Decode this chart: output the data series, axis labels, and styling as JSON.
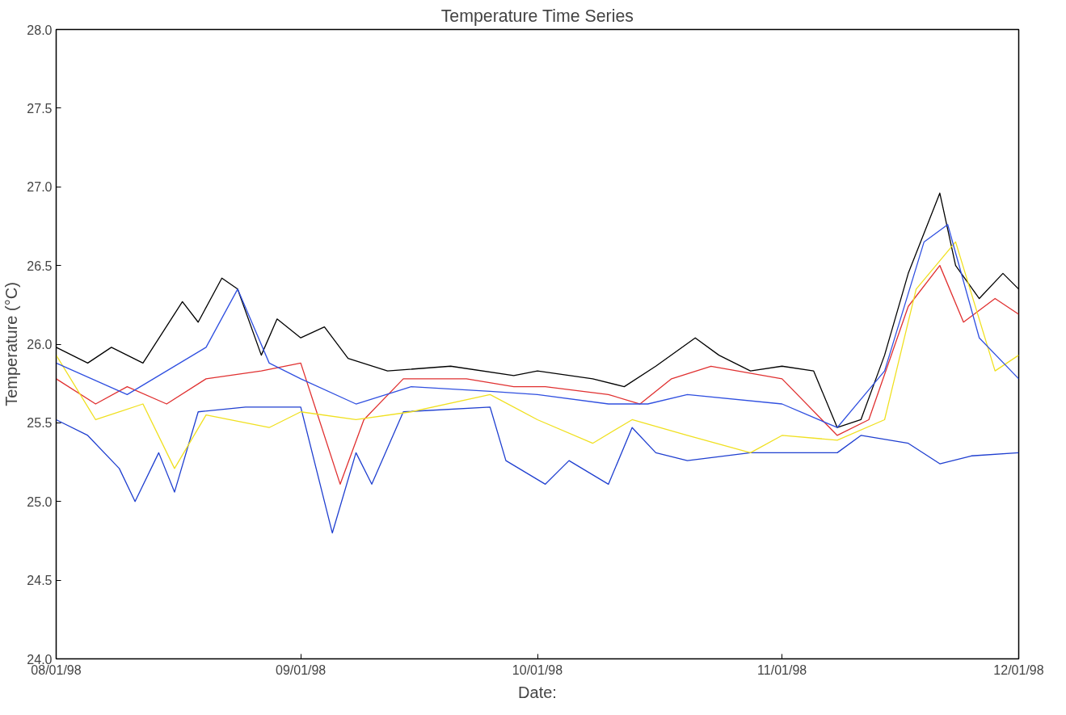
{
  "chart_data": {
    "type": "line",
    "title": "Temperature Time Series",
    "xlabel": "Date:",
    "ylabel": "Temperature (°C)",
    "xlim": [
      "1998-08-01",
      "1998-12-01"
    ],
    "xticks": [
      {
        "value": "1998-08-01",
        "label": "08/01/98"
      },
      {
        "value": "1998-09-01",
        "label": "09/01/98"
      },
      {
        "value": "1998-10-01",
        "label": "10/01/98"
      },
      {
        "value": "1998-11-01",
        "label": "11/01/98"
      },
      {
        "value": "1998-12-01",
        "label": "12/01/98"
      }
    ],
    "ylim": [
      24,
      28
    ],
    "yticks": [
      {
        "value": 24,
        "label": "24.0"
      },
      24.5,
      {
        "value": 25,
        "label": "25.0"
      },
      25.5,
      {
        "value": 26,
        "label": "26.0"
      },
      26.5,
      {
        "value": 27,
        "label": "27.0"
      },
      27.5,
      {
        "value": 28,
        "label": "28.0"
      }
    ],
    "grid": false,
    "line_style": "solid",
    "marker": "none",
    "series": [
      {
        "color": "#000000",
        "x": [
          "1998-08-01",
          "1998-08-05",
          "1998-08-08",
          "1998-08-12",
          "1998-08-17",
          "1998-08-19",
          "1998-08-22",
          "1998-08-24",
          "1998-08-27",
          "1998-08-29",
          "1998-09-01",
          "1998-09-04",
          "1998-09-07",
          "1998-09-12",
          "1998-09-20",
          "1998-09-28",
          "1998-10-01",
          "1998-10-08",
          "1998-10-12",
          "1998-10-16",
          "1998-10-21",
          "1998-10-24",
          "1998-10-28",
          "1998-11-01",
          "1998-11-05",
          "1998-11-08",
          "1998-11-11",
          "1998-11-14",
          "1998-11-17",
          "1998-11-21",
          "1998-11-23",
          "1998-11-26",
          "1998-11-29",
          "1998-12-01"
        ],
        "values": [
          25.98,
          25.88,
          25.98,
          25.88,
          26.27,
          26.14,
          26.42,
          26.35,
          25.93,
          26.16,
          26.04,
          26.11,
          25.91,
          25.83,
          25.86,
          25.8,
          25.83,
          25.78,
          25.73,
          25.86,
          26.04,
          25.93,
          25.83,
          25.86,
          25.83,
          25.47,
          25.52,
          25.93,
          26.45,
          26.96,
          26.5,
          26.29,
          26.45,
          26.35
        ]
      },
      {
        "color": "#1f3fd0",
        "x": [
          "1998-08-01",
          "1998-08-05",
          "1998-08-09",
          "1998-08-11",
          "1998-08-14",
          "1998-08-16",
          "1998-08-19",
          "1998-08-25",
          "1998-09-01",
          "1998-09-05",
          "1998-09-08",
          "1998-09-10",
          "1998-09-14",
          "1998-09-25",
          "1998-09-27",
          "1998-10-02",
          "1998-10-05",
          "1998-10-10",
          "1998-10-13",
          "1998-10-16",
          "1998-10-20",
          "1998-10-28",
          "1998-11-01",
          "1998-11-08",
          "1998-11-11",
          "1998-11-17",
          "1998-11-21",
          "1998-11-25",
          "1998-12-01"
        ],
        "values": [
          25.52,
          25.42,
          25.21,
          25.0,
          25.31,
          25.06,
          25.57,
          25.6,
          25.6,
          24.8,
          25.31,
          25.11,
          25.57,
          25.6,
          25.26,
          25.11,
          25.26,
          25.11,
          25.47,
          25.31,
          25.26,
          25.31,
          25.31,
          25.31,
          25.42,
          25.37,
          25.24,
          25.29,
          25.31
        ]
      },
      {
        "color": "#e03030",
        "x": [
          "1998-08-01",
          "1998-08-06",
          "1998-08-10",
          "1998-08-15",
          "1998-08-20",
          "1998-08-27",
          "1998-09-01",
          "1998-09-06",
          "1998-09-09",
          "1998-09-14",
          "1998-09-22",
          "1998-09-28",
          "1998-10-02",
          "1998-10-10",
          "1998-10-14",
          "1998-10-18",
          "1998-10-23",
          "1998-11-01",
          "1998-11-08",
          "1998-11-12",
          "1998-11-17",
          "1998-11-21",
          "1998-11-24",
          "1998-11-28",
          "1998-12-01"
        ],
        "values": [
          25.78,
          25.62,
          25.73,
          25.62,
          25.78,
          25.83,
          25.88,
          25.11,
          25.52,
          25.78,
          25.78,
          25.73,
          25.73,
          25.68,
          25.62,
          25.78,
          25.86,
          25.78,
          25.42,
          25.52,
          26.24,
          26.5,
          26.14,
          26.29,
          26.19
        ]
      },
      {
        "color": "#f0e020",
        "x": [
          "1998-08-01",
          "1998-08-06",
          "1998-08-12",
          "1998-08-16",
          "1998-08-20",
          "1998-08-28",
          "1998-09-01",
          "1998-09-08",
          "1998-09-15",
          "1998-09-25",
          "1998-10-01",
          "1998-10-08",
          "1998-10-13",
          "1998-10-20",
          "1998-10-28",
          "1998-11-01",
          "1998-11-08",
          "1998-11-14",
          "1998-11-18",
          "1998-11-23",
          "1998-11-28",
          "1998-12-01"
        ],
        "values": [
          25.93,
          25.52,
          25.62,
          25.21,
          25.55,
          25.47,
          25.57,
          25.52,
          25.57,
          25.68,
          25.52,
          25.37,
          25.52,
          25.42,
          25.31,
          25.42,
          25.39,
          25.52,
          26.35,
          26.65,
          25.83,
          25.93
        ]
      },
      {
        "color": "#3050e0",
        "x": [
          "1998-08-01",
          "1998-08-10",
          "1998-08-20",
          "1998-08-24",
          "1998-08-28",
          "1998-09-01",
          "1998-09-08",
          "1998-09-15",
          "1998-09-25",
          "1998-10-01",
          "1998-10-10",
          "1998-10-15",
          "1998-10-20",
          "1998-11-01",
          "1998-11-08",
          "1998-11-14",
          "1998-11-19",
          "1998-11-22",
          "1998-11-26",
          "1998-12-01"
        ],
        "values": [
          25.88,
          25.68,
          25.98,
          26.35,
          25.88,
          25.78,
          25.62,
          25.73,
          25.7,
          25.68,
          25.62,
          25.62,
          25.68,
          25.62,
          25.47,
          25.83,
          26.65,
          26.76,
          26.04,
          25.78
        ]
      }
    ]
  }
}
